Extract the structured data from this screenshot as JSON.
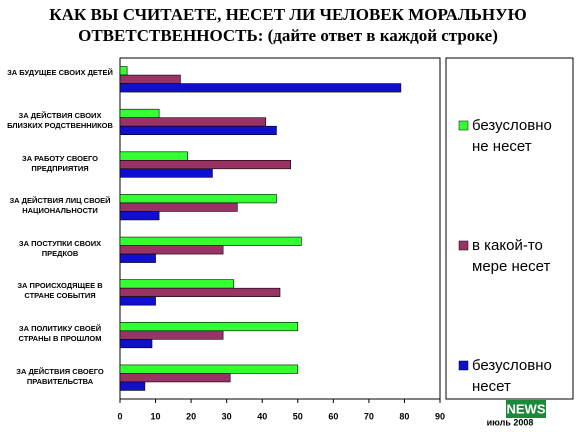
{
  "chart_data": {
    "type": "barh",
    "title": "КАК ВЫ СЧИТАЕТЕ, НЕСЕТ ЛИ ЧЕЛОВЕК МОРАЛЬНУЮ ОТВЕТСТВЕННОСТЬ:",
    "subtitle": "(дайте ответ в каждой строке)",
    "categories": [
      "ЗА БУДУЩЕЕ СВОИХ ДЕТЕЙ",
      "ЗА ДЕЙСТВИЯ СВОИХ БЛИЗКИХ РОДСТВЕННИКОВ",
      "ЗА РАБОТУ СВОЕГО ПРЕДПРИЯТИЯ",
      "ЗА ДЕЙСТВИЯ ЛИЦ СВОЕЙ НАЦИОНАЛЬНОСТИ",
      "ЗА ПОСТУПКИ СВОИХ ПРЕДКОВ",
      "ЗА ПРОИСХОДЯЩЕЕ В СТРАНЕ СОБЫТИЯ",
      "ЗА ПОЛИТИКУ СВОЕЙ СТРАНЫ В ПРОШЛОМ",
      "ЗА ДЕЙСТВИЯ СВОЕГО ПРАВИТЕЛЬСТВА"
    ],
    "series": [
      {
        "name": "безусловно не несет",
        "color": "#33ff33",
        "values": [
          2,
          11,
          19,
          44,
          51,
          32,
          50,
          50
        ]
      },
      {
        "name": "в какой-то мере несет",
        "color": "#993366",
        "values": [
          17,
          41,
          48,
          33,
          29,
          45,
          29,
          31
        ]
      },
      {
        "name": "безусловно несет",
        "color": "#1010cc",
        "values": [
          79,
          44,
          26,
          11,
          10,
          10,
          9,
          7
        ]
      }
    ],
    "xlim": [
      0,
      90
    ],
    "xticks": [
      0,
      10,
      20,
      30,
      40,
      50,
      60,
      70,
      80,
      90
    ],
    "note": "июль 2008",
    "logo": "NEWS"
  }
}
